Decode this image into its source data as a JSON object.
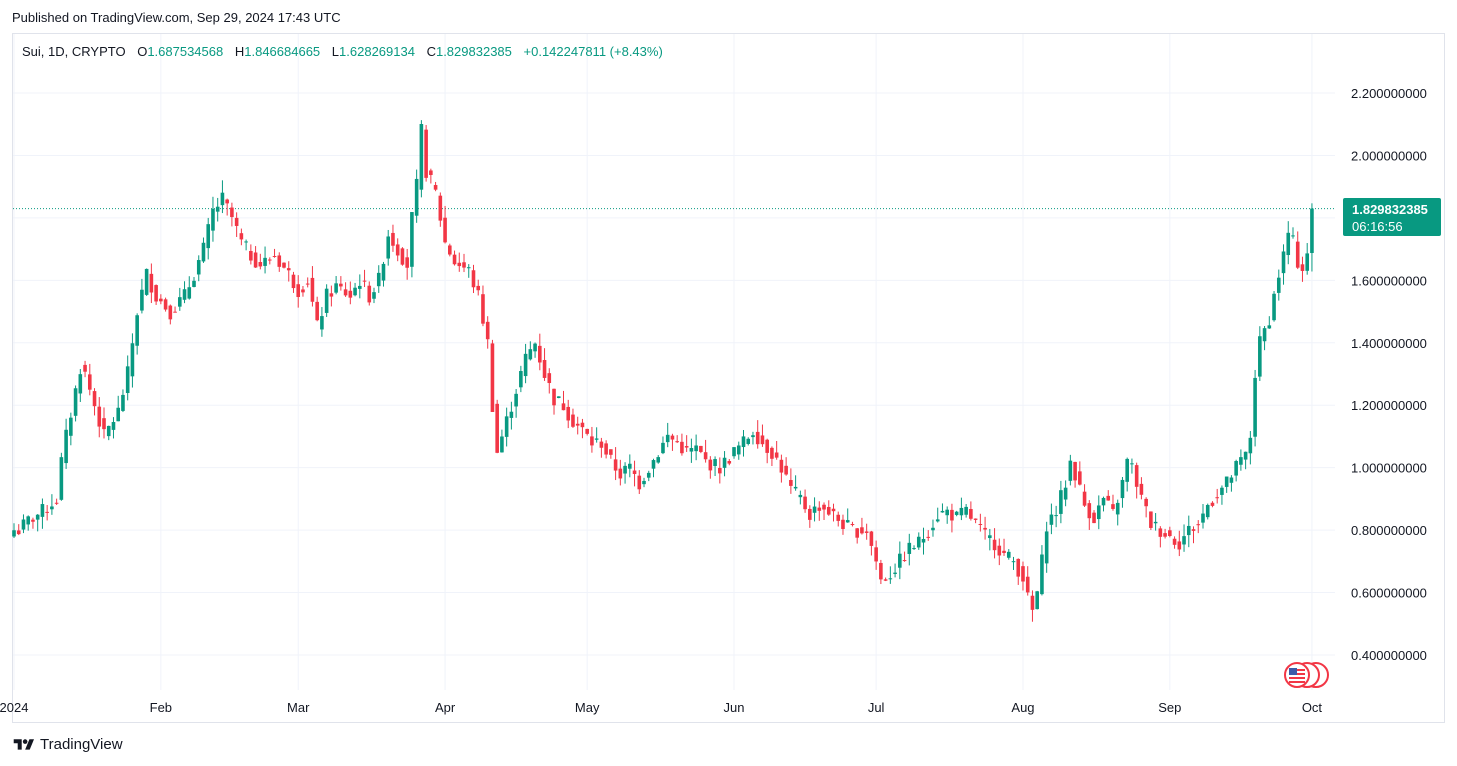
{
  "published": "Published on TradingView.com, Sep 29, 2024 17:43 UTC",
  "legend": {
    "symbol": "Sui, 1D, CRYPTO",
    "o_label": "O",
    "o_value": "1.687534568",
    "h_label": "H",
    "h_value": "1.846684665",
    "l_label": "L",
    "l_value": "1.628269134",
    "c_label": "C",
    "c_value": "1.829832385",
    "change": "+0.142247811 (+8.43%)"
  },
  "last_price": {
    "value": "1.829832385",
    "countdown": "06:16:56"
  },
  "brand": {
    "name": "TradingView",
    "logo_icon": "tradingview-logo-icon"
  },
  "colors": {
    "up": "#089981",
    "down": "#f23645",
    "grid": "#f0f3fa",
    "axis_text": "#131722"
  },
  "chart_data": {
    "type": "candlestick",
    "x_axis": {
      "tick_labels": [
        "2024",
        "Feb",
        "Mar",
        "Apr",
        "May",
        "Jun",
        "Jul",
        "Aug",
        "Sep",
        "Oct"
      ]
    },
    "y_axis": {
      "ylim": [
        0.3,
        2.35
      ],
      "tick_labels": [
        "2.200000000",
        "2.000000000",
        "1.800000000",
        "1.600000000",
        "1.400000000",
        "1.200000000",
        "1.000000000",
        "0.800000000",
        "0.600000000",
        "0.400000000"
      ],
      "tick_values": [
        2.2,
        2.0,
        1.8,
        1.6,
        1.4,
        1.2,
        1.0,
        0.8,
        0.6,
        0.4
      ]
    },
    "grid": true,
    "close_path": [
      [
        1,
        0.8
      ],
      [
        3,
        0.83
      ],
      [
        6,
        0.86
      ],
      [
        9,
        0.9
      ],
      [
        10,
        1.02
      ],
      [
        11,
        1.1
      ],
      [
        14,
        1.32
      ],
      [
        15,
        1.3
      ],
      [
        17,
        1.2
      ],
      [
        19,
        1.1
      ],
      [
        22,
        1.18
      ],
      [
        24,
        1.3
      ],
      [
        26,
        1.5
      ],
      [
        28,
        1.62
      ],
      [
        30,
        1.55
      ],
      [
        33,
        1.5
      ],
      [
        36,
        1.55
      ],
      [
        38,
        1.62
      ],
      [
        40,
        1.7
      ],
      [
        42,
        1.82
      ],
      [
        44,
        1.86
      ],
      [
        46,
        1.8
      ],
      [
        48,
        1.72
      ],
      [
        50,
        1.68
      ],
      [
        52,
        1.65
      ],
      [
        55,
        1.68
      ],
      [
        58,
        1.62
      ],
      [
        60,
        1.57
      ],
      [
        62,
        1.6
      ],
      [
        64,
        1.45
      ],
      [
        66,
        1.55
      ],
      [
        68,
        1.58
      ],
      [
        71,
        1.55
      ],
      [
        73,
        1.6
      ],
      [
        75,
        1.55
      ],
      [
        77,
        1.6
      ],
      [
        79,
        1.75
      ],
      [
        81,
        1.7
      ],
      [
        83,
        1.65
      ],
      [
        84,
        1.8
      ],
      [
        85,
        1.9
      ],
      [
        86,
        2.08
      ],
      [
        87,
        1.95
      ],
      [
        89,
        1.88
      ],
      [
        90,
        1.8
      ],
      [
        91,
        1.72
      ],
      [
        93,
        1.66
      ],
      [
        96,
        1.63
      ],
      [
        98,
        1.55
      ],
      [
        100,
        1.4
      ],
      [
        101,
        1.2
      ],
      [
        102,
        1.05
      ],
      [
        104,
        1.15
      ],
      [
        106,
        1.25
      ],
      [
        108,
        1.35
      ],
      [
        110,
        1.4
      ],
      [
        112,
        1.3
      ],
      [
        114,
        1.22
      ],
      [
        116,
        1.2
      ],
      [
        118,
        1.15
      ],
      [
        120,
        1.12
      ],
      [
        122,
        1.08
      ],
      [
        124,
        1.08
      ],
      [
        126,
        1.02
      ],
      [
        128,
        0.98
      ],
      [
        130,
        1.0
      ],
      [
        132,
        0.95
      ],
      [
        134,
        1.0
      ],
      [
        136,
        1.05
      ],
      [
        138,
        1.1
      ],
      [
        140,
        1.08
      ],
      [
        142,
        1.05
      ],
      [
        144,
        1.06
      ],
      [
        146,
        1.02
      ],
      [
        149,
        1.0
      ],
      [
        152,
        1.05
      ],
      [
        154,
        1.08
      ],
      [
        156,
        1.12
      ],
      [
        158,
        1.08
      ],
      [
        160,
        1.05
      ],
      [
        162,
        1.0
      ],
      [
        164,
        0.93
      ],
      [
        166,
        0.9
      ],
      [
        168,
        0.85
      ],
      [
        170,
        0.88
      ],
      [
        172,
        0.86
      ],
      [
        175,
        0.82
      ],
      [
        177,
        0.8
      ],
      [
        180,
        0.8
      ],
      [
        182,
        0.7
      ],
      [
        183,
        0.64
      ],
      [
        185,
        0.66
      ],
      [
        187,
        0.7
      ],
      [
        189,
        0.74
      ],
      [
        191,
        0.76
      ],
      [
        193,
        0.8
      ],
      [
        195,
        0.85
      ],
      [
        197,
        0.86
      ],
      [
        199,
        0.84
      ],
      [
        201,
        0.86
      ],
      [
        203,
        0.82
      ],
      [
        205,
        0.78
      ],
      [
        207,
        0.76
      ],
      [
        209,
        0.72
      ],
      [
        211,
        0.7
      ],
      [
        213,
        0.65
      ],
      [
        214,
        0.58
      ],
      [
        215,
        0.54
      ],
      [
        216,
        0.6
      ],
      [
        217,
        0.7
      ],
      [
        218,
        0.82
      ],
      [
        220,
        0.86
      ],
      [
        222,
        0.95
      ],
      [
        223,
        1.02
      ],
      [
        224,
        0.98
      ],
      [
        226,
        0.88
      ],
      [
        228,
        0.84
      ],
      [
        230,
        0.9
      ],
      [
        232,
        0.85
      ],
      [
        234,
        0.95
      ],
      [
        235,
        1.02
      ],
      [
        236,
        1.0
      ],
      [
        238,
        0.9
      ],
      [
        240,
        0.82
      ],
      [
        242,
        0.8
      ],
      [
        244,
        0.78
      ],
      [
        246,
        0.76
      ],
      [
        248,
        0.8
      ],
      [
        250,
        0.82
      ],
      [
        252,
        0.88
      ],
      [
        254,
        0.92
      ],
      [
        256,
        0.95
      ],
      [
        258,
        1.0
      ],
      [
        260,
        1.04
      ],
      [
        261,
        1.1
      ],
      [
        262,
        1.3
      ],
      [
        263,
        1.4
      ],
      [
        264,
        1.44
      ],
      [
        265,
        1.48
      ],
      [
        266,
        1.55
      ],
      [
        267,
        1.62
      ],
      [
        268,
        1.68
      ],
      [
        269,
        1.75
      ],
      [
        270,
        1.72
      ],
      [
        271,
        1.66
      ],
      [
        272,
        1.64
      ],
      [
        273,
        1.69
      ],
      [
        274,
        1.83
      ]
    ]
  }
}
